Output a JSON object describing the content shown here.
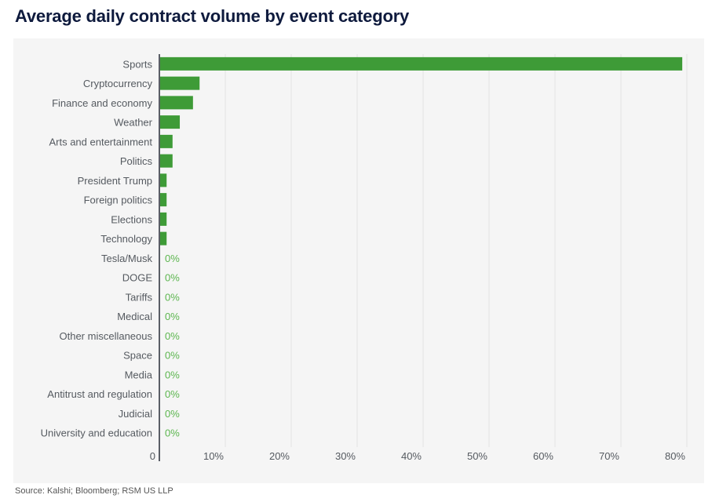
{
  "title": "Average daily contract volume by event category",
  "source": "Source: Kalshi; Bloomberg; RSM US LLP",
  "colors": {
    "bar": "#3e9b37",
    "zero_label": "#5cb64f",
    "axis": "#5a5e66",
    "grid": "#e2e2e2",
    "text": "#555a60"
  },
  "chart_data": {
    "type": "bar",
    "orientation": "horizontal",
    "title": "Average daily contract volume by event category",
    "xlabel": "",
    "ylabel": "",
    "xlim": [
      0,
      0.8
    ],
    "grid": true,
    "categories": [
      "Sports",
      "Cryptocurrency",
      "Finance and economy",
      "Weather",
      "Arts and entertainment",
      "Politics",
      "President Trump",
      "Foreign politics",
      "Elections",
      "Technology",
      "Tesla/Musk",
      "DOGE",
      "Tariffs",
      "Medical",
      "Other miscellaneous",
      "Space",
      "Media",
      "Antitrust and regulation",
      "Judicial",
      "University and education"
    ],
    "values": [
      0.793,
      0.061,
      0.051,
      0.031,
      0.02,
      0.02,
      0.011,
      0.011,
      0.011,
      0.011,
      0,
      0,
      0,
      0,
      0,
      0,
      0,
      0,
      0,
      0
    ],
    "zero_label": "0%",
    "x_ticks": [
      0,
      0.1,
      0.2,
      0.3,
      0.4,
      0.5,
      0.6,
      0.7,
      0.8
    ],
    "x_tick_labels": [
      "0",
      "10%",
      "20%",
      "30%",
      "40%",
      "50%",
      "60%",
      "70%",
      "80%"
    ]
  }
}
